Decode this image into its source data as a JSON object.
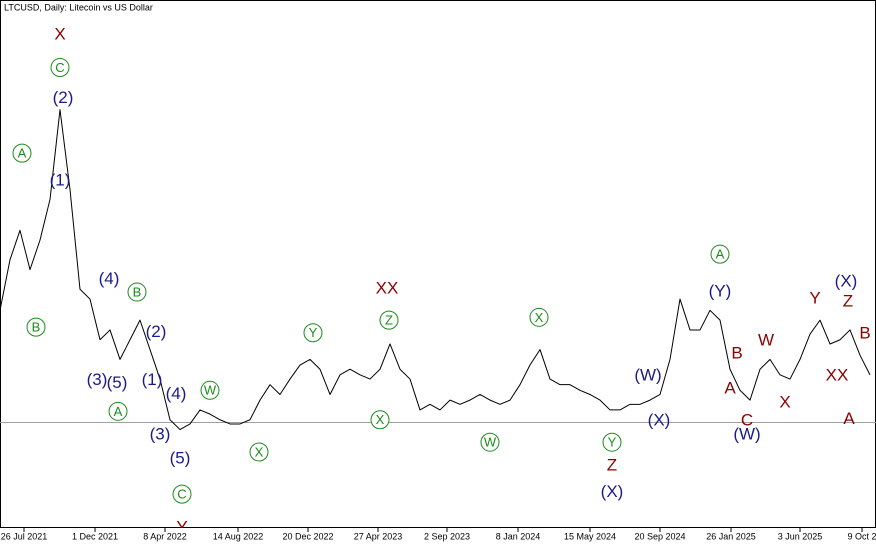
{
  "chart_data": {
    "type": "line",
    "title": "LTCUSD, Daily:  Litecoin vs US Dollar",
    "color": "#000000",
    "values": [
      140,
      176,
      197,
      169,
      190,
      219,
      283,
      226,
      155,
      148,
      119,
      126,
      105,
      119,
      133,
      112,
      91,
      62,
      55,
      59,
      69,
      66,
      62,
      59,
      59,
      62,
      76,
      87,
      80,
      91,
      101,
      105,
      98,
      80,
      94,
      98,
      94,
      91,
      98,
      116,
      98,
      91,
      69,
      73,
      69,
      76,
      73,
      76,
      80,
      76,
      73,
      76,
      87,
      101,
      112,
      91,
      87,
      87,
      83,
      80,
      76,
      69,
      69,
      73,
      73,
      76,
      80,
      105,
      148,
      126,
      126,
      140,
      133,
      98,
      83,
      76,
      98,
      105,
      94,
      91,
      105,
      123,
      133,
      116,
      119,
      126,
      108,
      94
    ],
    "xlim": [
      0,
      87.6
    ],
    "ylim": [
      -13,
      354
    ],
    "xticks": [
      {
        "value": 2.4,
        "label": "26 Jul 2021"
      },
      {
        "value": 9.5,
        "label": "1 Dec 2021"
      },
      {
        "value": 16.5,
        "label": "8 Apr 2022"
      },
      {
        "value": 23.8,
        "label": "14 Aug 2022"
      },
      {
        "value": 30.8,
        "label": "20 Dec 2022"
      },
      {
        "value": 37.8,
        "label": "27 Apr 2023"
      },
      {
        "value": 44.7,
        "label": "2 Sep 2023"
      },
      {
        "value": 51.8,
        "label": "8 Jan 2024"
      },
      {
        "value": 59,
        "label": "15 May 2024"
      },
      {
        "value": 66,
        "label": "20 Sep 2024"
      },
      {
        "value": 73.1,
        "label": "26 Jan 2025"
      },
      {
        "value": 80,
        "label": "3 Jun 2025"
      },
      {
        "value": 86.2,
        "label": "9 Oct 2"
      }
    ],
    "hline": 60,
    "hline_color": "#a0a0a0",
    "annotations": [
      {
        "text": "X",
        "color": "#8b0000",
        "circled": false,
        "x": 6,
        "y": 336
      },
      {
        "text": "C",
        "color": "#1a8c1a",
        "circled": true,
        "x": 6,
        "y": 313
      },
      {
        "text": "(2)",
        "color": "#1a1a8c",
        "circled": false,
        "x": 6.3,
        "y": 291
      },
      {
        "text": "A",
        "color": "#1a8c1a",
        "circled": true,
        "x": 2.2,
        "y": 252
      },
      {
        "text": "(1)",
        "color": "#1a1a8c",
        "circled": false,
        "x": 6,
        "y": 232
      },
      {
        "text": "B",
        "color": "#1a8c1a",
        "circled": true,
        "x": 3.6,
        "y": 128
      },
      {
        "text": "(4)",
        "color": "#1a1a8c",
        "circled": false,
        "x": 10.9,
        "y": 162
      },
      {
        "text": "B",
        "color": "#1a8c1a",
        "circled": true,
        "x": 13.7,
        "y": 153
      },
      {
        "text": "(2)",
        "color": "#1a1a8c",
        "circled": false,
        "x": 15.6,
        "y": 124
      },
      {
        "text": "(3)",
        "color": "#1a1a8c",
        "circled": false,
        "x": 9.7,
        "y": 90
      },
      {
        "text": "(5)",
        "color": "#1a1a8c",
        "circled": false,
        "x": 11.7,
        "y": 88
      },
      {
        "text": "(1)",
        "color": "#1a1a8c",
        "circled": false,
        "x": 15.2,
        "y": 90
      },
      {
        "text": "A",
        "color": "#1a8c1a",
        "circled": true,
        "x": 11.8,
        "y": 68
      },
      {
        "text": "(4)",
        "color": "#1a1a8c",
        "circled": false,
        "x": 17.6,
        "y": 80
      },
      {
        "text": "W",
        "color": "#1a8c1a",
        "circled": true,
        "x": 21,
        "y": 83
      },
      {
        "text": "(3)",
        "color": "#1a1a8c",
        "circled": false,
        "x": 16,
        "y": 51
      },
      {
        "text": "(5)",
        "color": "#1a1a8c",
        "circled": false,
        "x": 18,
        "y": 34
      },
      {
        "text": "C",
        "color": "#1a8c1a",
        "circled": true,
        "x": 18.2,
        "y": 9
      },
      {
        "text": "Y",
        "color": "#8b0000",
        "circled": false,
        "x": 18.2,
        "y": -15
      },
      {
        "text": "X",
        "color": "#1a8c1a",
        "circled": true,
        "x": 25.9,
        "y": 39
      },
      {
        "text": "Y",
        "color": "#1a8c1a",
        "circled": true,
        "x": 31.3,
        "y": 124
      },
      {
        "text": "XX",
        "color": "#8b0000",
        "circled": false,
        "x": 38.7,
        "y": 155
      },
      {
        "text": "Z",
        "color": "#1a8c1a",
        "circled": true,
        "x": 38.9,
        "y": 133
      },
      {
        "text": "X",
        "color": "#1a8c1a",
        "circled": true,
        "x": 38,
        "y": 62
      },
      {
        "text": "W",
        "color": "#1a8c1a",
        "circled": true,
        "x": 49,
        "y": 46
      },
      {
        "text": "X",
        "color": "#1a8c1a",
        "circled": true,
        "x": 53.9,
        "y": 135
      },
      {
        "text": "Y",
        "color": "#1a8c1a",
        "circled": true,
        "x": 61.2,
        "y": 46
      },
      {
        "text": "Z",
        "color": "#8b0000",
        "circled": false,
        "x": 61.2,
        "y": 29
      },
      {
        "text": "(X)",
        "color": "#1a1a8c",
        "circled": false,
        "x": 61.2,
        "y": 10
      },
      {
        "text": "(W)",
        "color": "#1a1a8c",
        "circled": false,
        "x": 64.8,
        "y": 93
      },
      {
        "text": "(X)",
        "color": "#1a1a8c",
        "circled": false,
        "x": 65.9,
        "y": 61
      },
      {
        "text": "A",
        "color": "#1a8c1a",
        "circled": true,
        "x": 72,
        "y": 180
      },
      {
        "text": "(Y)",
        "color": "#1a1a8c",
        "circled": false,
        "x": 72,
        "y": 153
      },
      {
        "text": "B",
        "color": "#8b0000",
        "circled": false,
        "x": 73.7,
        "y": 109
      },
      {
        "text": "A",
        "color": "#8b0000",
        "circled": false,
        "x": 73,
        "y": 84
      },
      {
        "text": "W",
        "color": "#8b0000",
        "circled": false,
        "x": 76.6,
        "y": 118
      },
      {
        "text": "C",
        "color": "#8b0000",
        "circled": false,
        "x": 74.7,
        "y": 61
      },
      {
        "text": "(W)",
        "color": "#1a1a8c",
        "circled": false,
        "x": 74.7,
        "y": 51
      },
      {
        "text": "X",
        "color": "#8b0000",
        "circled": false,
        "x": 78.5,
        "y": 74
      },
      {
        "text": "Y",
        "color": "#8b0000",
        "circled": false,
        "x": 81.5,
        "y": 148
      },
      {
        "text": "(X)",
        "color": "#1a1a8c",
        "circled": false,
        "x": 84.6,
        "y": 160
      },
      {
        "text": "Z",
        "color": "#8b0000",
        "circled": false,
        "x": 84.8,
        "y": 146
      },
      {
        "text": "B",
        "color": "#8b0000",
        "circled": false,
        "x": 86.5,
        "y": 123
      },
      {
        "text": "XX",
        "color": "#8b0000",
        "circled": false,
        "x": 83.7,
        "y": 93
      },
      {
        "text": "A",
        "color": "#8b0000",
        "circled": false,
        "x": 84.9,
        "y": 62
      }
    ]
  }
}
